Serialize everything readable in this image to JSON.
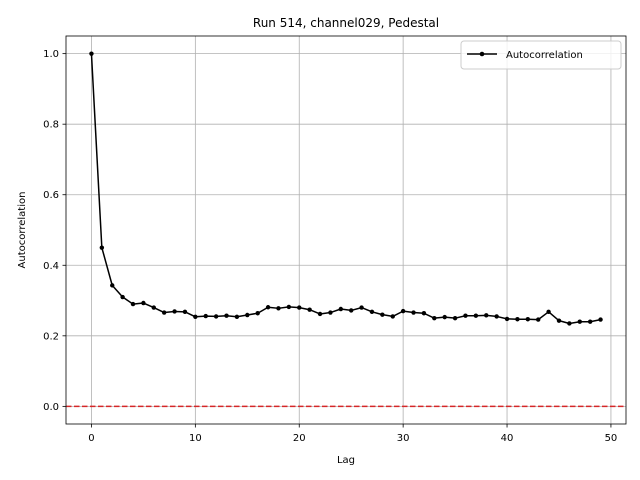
{
  "chart_data": {
    "type": "line",
    "title": "Run 514, channel029, Pedestal",
    "xlabel": "Lag",
    "ylabel": "Autocorrelation",
    "xlim": [
      -2.45,
      51.45
    ],
    "ylim": [
      -0.05,
      1.05
    ],
    "xticks": [
      0,
      10,
      20,
      30,
      40,
      50
    ],
    "yticks": [
      0.0,
      0.2,
      0.4,
      0.6,
      0.8,
      1.0
    ],
    "ytick_labels": [
      "0.0",
      "0.2",
      "0.4",
      "0.6",
      "0.8",
      "1.0"
    ],
    "grid": true,
    "legend_position": "upper right",
    "reference_line": {
      "y": 0.0,
      "color": "#d62728",
      "style": "dashed"
    },
    "series": [
      {
        "name": "Autocorrelation",
        "color": "#000000",
        "marker": "circle",
        "x": [
          0,
          1,
          2,
          3,
          4,
          5,
          6,
          7,
          8,
          9,
          10,
          11,
          12,
          13,
          14,
          15,
          16,
          17,
          18,
          19,
          20,
          21,
          22,
          23,
          24,
          25,
          26,
          27,
          28,
          29,
          30,
          31,
          32,
          33,
          34,
          35,
          36,
          37,
          38,
          39,
          40,
          41,
          42,
          43,
          44,
          45,
          46,
          47,
          48,
          49
        ],
        "values": [
          1.0,
          0.45,
          0.343,
          0.31,
          0.29,
          0.293,
          0.28,
          0.266,
          0.269,
          0.268,
          0.254,
          0.256,
          0.255,
          0.257,
          0.254,
          0.259,
          0.264,
          0.281,
          0.278,
          0.282,
          0.28,
          0.274,
          0.262,
          0.266,
          0.276,
          0.272,
          0.28,
          0.268,
          0.26,
          0.255,
          0.27,
          0.266,
          0.264,
          0.25,
          0.253,
          0.25,
          0.257,
          0.257,
          0.258,
          0.255,
          0.248,
          0.247,
          0.247,
          0.246,
          0.268,
          0.243,
          0.235,
          0.24,
          0.24,
          0.246
        ]
      }
    ]
  }
}
